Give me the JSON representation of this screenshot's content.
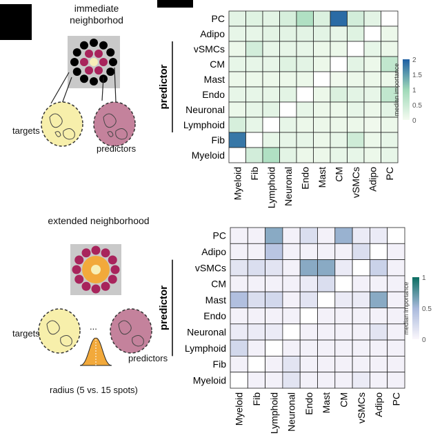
{
  "top": {
    "title_line1": "immediate",
    "title_line2": "neighborhod",
    "targets_label": "targets",
    "predictors_label": "predictors",
    "y_axis_label": "predictor",
    "legend_title": "median importance",
    "legend_ticks": [
      "2",
      "1.5",
      "1",
      "0.5",
      "0"
    ],
    "color_low": "#f4fbf0",
    "color_mid": "#9fd9b8",
    "color_high": "#1d5fa3"
  },
  "bottom": {
    "title": "extended neighborhood",
    "targets_label": "targets",
    "predictors_label": "predictors",
    "radius_label": "radius (5 vs. 15 spots)",
    "dots_label": "...",
    "y_axis_label": "predictor",
    "legend_title": "median importance",
    "legend_ticks": [
      "1",
      "0.5",
      "0"
    ],
    "color_low": "#fbf7fc",
    "color_mid": "#a9b9dc",
    "color_high": "#0b6e62"
  },
  "chart_data": [
    {
      "type": "heatmap",
      "title": "immediate neighborhod",
      "ylabel": "predictor",
      "xlabel": "",
      "legend_title": "median importance",
      "value_range": [
        0,
        2
      ],
      "rows": [
        "PC",
        "Adipo",
        "vSMCs",
        "CM",
        "Mast",
        "Endo",
        "Neuronal",
        "Lymphoid",
        "Fib",
        "Myeloid"
      ],
      "columns": [
        "Myeloid",
        "Fib",
        "Lymphoid",
        "Neuronal",
        "Endo",
        "Mast",
        "CM",
        "vSMCs",
        "Adipo",
        "PC"
      ],
      "values": [
        [
          0.2,
          0.25,
          0.2,
          0.35,
          0.8,
          0.3,
          1.9,
          0.4,
          0.2,
          null
        ],
        [
          0.15,
          0.15,
          0.2,
          0.2,
          0.2,
          0.2,
          0.15,
          0.25,
          null,
          0.1
        ],
        [
          0.1,
          0.4,
          0.15,
          0.15,
          0.15,
          0.1,
          0.1,
          null,
          0.15,
          0.1
        ],
        [
          0.15,
          0.15,
          0.15,
          0.25,
          0.2,
          0.1,
          null,
          0.2,
          0.1,
          0.6
        ],
        [
          0.1,
          0.1,
          0.1,
          0.1,
          0.1,
          null,
          0.05,
          0.1,
          0.1,
          0.1
        ],
        [
          0.15,
          0.15,
          0.15,
          0.2,
          null,
          0.1,
          0.3,
          0.2,
          0.15,
          0.6
        ],
        [
          0.1,
          0.15,
          0.2,
          null,
          0.15,
          0.1,
          0.1,
          0.15,
          0.1,
          0.2
        ],
        [
          0.35,
          0.15,
          null,
          0.15,
          0.1,
          0.1,
          0.1,
          0.1,
          0.05,
          0.1
        ],
        [
          1.8,
          null,
          0.15,
          0.15,
          0.15,
          0.1,
          0.15,
          0.45,
          0.1,
          0.15
        ],
        [
          null,
          0.4,
          0.8,
          0.2,
          0.1,
          0.1,
          0.15,
          0.15,
          0.1,
          0.15
        ]
      ]
    },
    {
      "type": "heatmap",
      "title": "extended neighborhood",
      "ylabel": "predictor",
      "xlabel": "",
      "legend_title": "median importance",
      "value_range": [
        0,
        1
      ],
      "rows": [
        "PC",
        "Adipo",
        "vSMCs",
        "CM",
        "Mast",
        "Endo",
        "Neuronal",
        "Lymphoid",
        "Fib",
        "Myeloid"
      ],
      "columns": [
        "Myeloid",
        "Fib",
        "Lymphoid",
        "Neuronal",
        "Endo",
        "Mast",
        "CM",
        "vSMCs",
        "Adipo",
        "PC"
      ],
      "values": [
        [
          0.05,
          0.05,
          0.6,
          0.05,
          0.2,
          0.05,
          0.55,
          0.1,
          0.1,
          null
        ],
        [
          0.05,
          0.05,
          0.4,
          0.05,
          0.05,
          0.05,
          0.05,
          0.2,
          null,
          0.05
        ],
        [
          0.15,
          0.2,
          0.15,
          0.05,
          0.6,
          0.6,
          0.1,
          null,
          0.3,
          0.05
        ],
        [
          0.05,
          0.05,
          0.05,
          0.05,
          0.1,
          0.2,
          null,
          0.05,
          0.05,
          0.05
        ],
        [
          0.45,
          0.2,
          0.25,
          0.05,
          0.15,
          null,
          0.1,
          0.1,
          0.6,
          0.05
        ],
        [
          0.05,
          0.05,
          0.05,
          0.05,
          null,
          0.05,
          0.05,
          0.05,
          0.05,
          0.05
        ],
        [
          0.1,
          0.1,
          0.1,
          null,
          0.05,
          0.05,
          0.05,
          0.05,
          0.15,
          0.05
        ],
        [
          0.25,
          0.05,
          null,
          0.05,
          0.05,
          0.05,
          0.05,
          0.05,
          0.05,
          0.05
        ],
        [
          0.05,
          null,
          0.05,
          0.15,
          0.05,
          0.05,
          0.05,
          0.05,
          0.05,
          0.05
        ],
        [
          null,
          0.05,
          0.05,
          0.15,
          0.05,
          0.05,
          0.05,
          0.1,
          0.05,
          0.05
        ]
      ]
    }
  ]
}
